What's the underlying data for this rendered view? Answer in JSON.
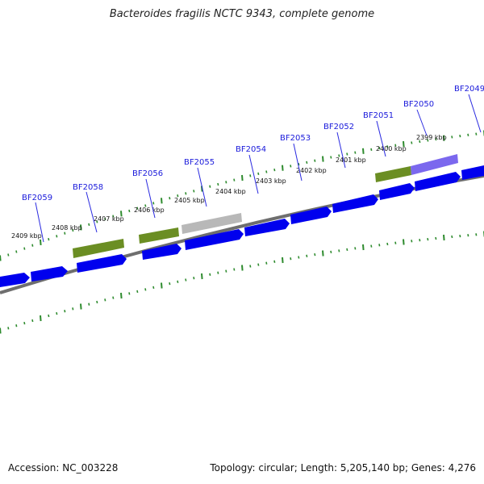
{
  "title": "Bacteroides fragilis NCTC 9343, complete genome",
  "footer": {
    "accession": "Accession: NC_003228",
    "summary": "Topology: circular; Length: 5,205,140 bp; Genes: 4,276"
  },
  "colors": {
    "cds_forward": "#0000ee",
    "backbone": "#777777",
    "tick": "#2e8b2e",
    "cog_green": "#6b8e23",
    "cog_purple": "#7b68ee",
    "cog_gray": "#bbbbbb",
    "gene_label": "#1a1adb"
  },
  "kbp_labels": [
    "2409 kbp",
    "2408 kbp",
    "2407 kbp",
    "2406 kbp",
    "2405 kbp",
    "2404 kbp",
    "2403 kbp",
    "2402 kbp",
    "2401 kbp",
    "2400 kbp",
    "2399 kbp"
  ],
  "gene_labels": [
    "BF2059",
    "BF2058",
    "BF2056",
    "BF2055",
    "BF2054",
    "BF2053",
    "BF2052",
    "BF2051",
    "BF2050",
    "BF2049"
  ]
}
